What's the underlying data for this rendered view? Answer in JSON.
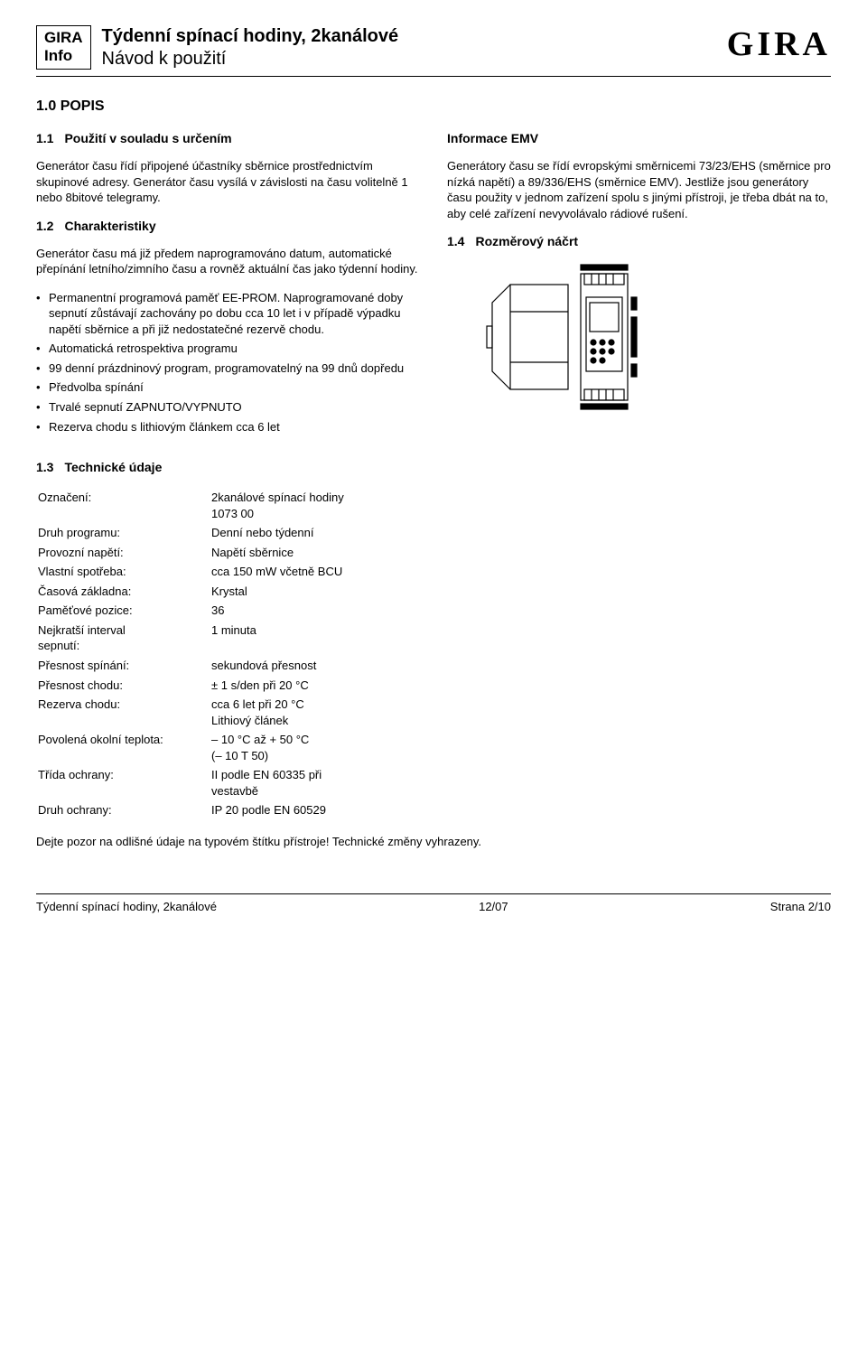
{
  "header": {
    "brand_box_line1": "GIRA",
    "brand_box_line2": "Info",
    "title_line1": "Týdenní spínací hodiny, 2kanálové",
    "title_line2": "Návod k použití",
    "logo_text": "GIRA"
  },
  "section1": {
    "heading": "1.0 POPIS",
    "s11_num": "1.1",
    "s11_title": "Použití v souladu s určením",
    "s11_p": "Generátor času řídí připojené účastníky sběrnice prostřednictvím skupinové adresy. Generátor času vysílá v závislosti na času volitelně 1 nebo 8bitové telegramy.",
    "s12_num": "1.2",
    "s12_title": "Charakteristiky",
    "s12_p": "Generátor času má již předem naprogramováno datum, automatické přepínání letního/zimního času a rovněž aktuální čas jako týdenní hodiny.",
    "bullets": [
      "Permanentní programová paměť EE-PROM. Naprogramované doby sepnutí zůstávají zachovány po dobu cca 10 let i v případě výpadku napětí sběrnice a při již nedostatečné rezervě chodu.",
      "Automatická retrospektiva programu",
      "99 denní prázdninový program, programovatelný na 99 dnů dopředu",
      "Předvolba spínání",
      "Trvalé sepnutí ZAPNUTO/VYPNUTO",
      "Rezerva chodu s lithiovým článkem cca 6 let"
    ],
    "emv_title": "Informace EMV",
    "emv_p": "Generátory času se řídí evropskými směrnicemi 73/23/EHS (směrnice pro nízká napětí) a 89/336/EHS (směrnice EMV). Jestliže jsou generátory času použity v jednom zařízení spolu s jinými přístroji, je třeba dbát na to, aby celé zařízení nevyvolávalo rádiové rušení.",
    "s14_num": "1.4",
    "s14_title": "Rozměrový náčrt"
  },
  "diagram": {
    "outer_w": 210,
    "outer_h": 160,
    "rail_w": 120,
    "rail_h": 150,
    "stroke": "#000",
    "stroke_width": 1.2
  },
  "section13": {
    "num": "1.3",
    "title": "Technické údaje",
    "rows": [
      {
        "label": "Označení:",
        "value": "2kanálové spínací hodiny\n1073 00"
      },
      {
        "label": "Druh programu:",
        "value": "Denní nebo týdenní"
      },
      {
        "label": "Provozní napětí:",
        "value": "Napětí sběrnice"
      },
      {
        "label": "Vlastní spotřeba:",
        "value": "cca 150 mW včetně BCU"
      },
      {
        "label": "Časová základna:",
        "value": "Krystal"
      },
      {
        "label": "Paměťové pozice:",
        "value": "36"
      },
      {
        "label": "Nejkratší interval\nsepnutí:",
        "value": "1 minuta"
      },
      {
        "label": "Přesnost spínání:",
        "value": "sekundová přesnost"
      },
      {
        "label": "Přesnost chodu:",
        "value": "± 1 s/den při 20 °C"
      },
      {
        "label": "Rezerva chodu:",
        "value": "cca 6 let při 20 °C\nLithiový článek"
      },
      {
        "label": "Povolená okolní teplota:",
        "value": "– 10 °C až + 50 °C\n(– 10 T 50)"
      },
      {
        "label": "Třída ochrany:",
        "value": "II podle EN 60335 při\nvestavbě"
      },
      {
        "label": "Druh ochrany:",
        "value": "IP 20 podle EN 60529"
      }
    ],
    "note": "Dejte pozor na odlišné údaje na typovém štítku přístroje! Technické změny vyhrazeny."
  },
  "footer": {
    "left": "Týdenní spínací hodiny, 2kanálové",
    "mid": "12/07",
    "right": "Strana 2/10"
  }
}
